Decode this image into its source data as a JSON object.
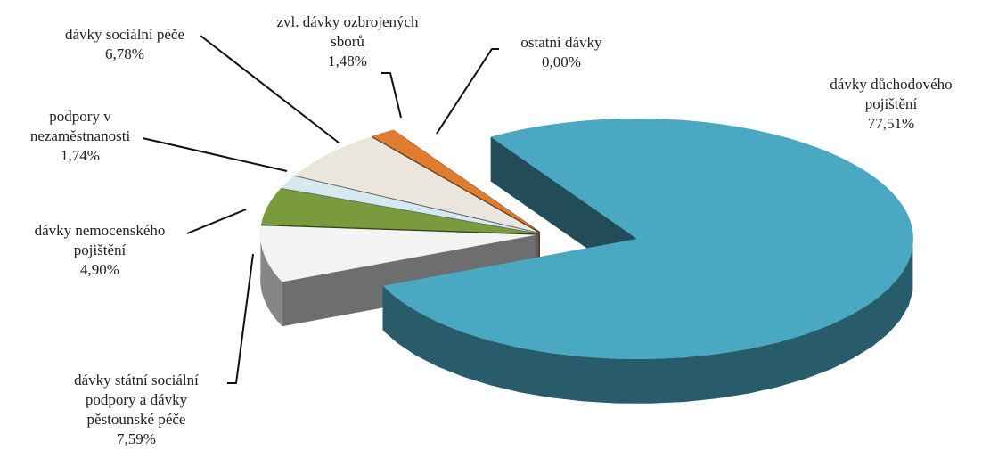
{
  "chart_data": {
    "type": "pie",
    "categories": [
      "dávky důchodového pojištění",
      "dávky státní sociální podpory a dávky pěstounské péče",
      "dávky nemocenského pojištění",
      "podpory v nezaměstnanosti",
      "dávky sociální péče",
      "zvl. dávky ozbrojených sborů",
      "ostatní dávky"
    ],
    "values": [
      77.51,
      7.59,
      4.9,
      1.74,
      6.78,
      1.48,
      0.0
    ],
    "value_labels": [
      "77,51%",
      "7,59%",
      "4,90%",
      "1,74%",
      "6,78%",
      "1,48%",
      "0,00%"
    ],
    "colors": [
      "#4ba8c3",
      "#f4f4f4",
      "#7a9a3e",
      "#d6e8f0",
      "#ebe6dd",
      "#e07c2f",
      "#4f5a7a"
    ]
  }
}
